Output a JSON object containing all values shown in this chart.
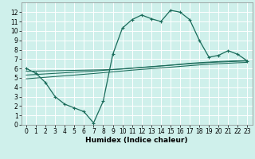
{
  "xlabel": "Humidex (Indice chaleur)",
  "bg_color": "#cff0eb",
  "line_color": "#1a6b5a",
  "grid_color": "#ffffff",
  "x_values": [
    0,
    1,
    2,
    3,
    4,
    5,
    6,
    7,
    8,
    9,
    10,
    11,
    12,
    13,
    14,
    15,
    16,
    17,
    18,
    19,
    20,
    21,
    22,
    23
  ],
  "y_main": [
    6.0,
    5.5,
    4.5,
    3.0,
    2.2,
    1.8,
    1.4,
    0.2,
    2.5,
    7.5,
    10.3,
    11.2,
    11.7,
    11.3,
    11.0,
    12.2,
    12.0,
    11.2,
    9.0,
    7.2,
    7.4,
    7.9,
    7.5,
    6.8
  ],
  "y_line1": [
    5.7,
    5.72,
    5.74,
    5.76,
    5.78,
    5.8,
    5.82,
    5.84,
    5.86,
    5.9,
    5.95,
    6.02,
    6.1,
    6.18,
    6.26,
    6.35,
    6.45,
    6.55,
    6.62,
    6.68,
    6.74,
    6.78,
    6.82,
    6.86
  ],
  "y_line2": [
    5.3,
    5.36,
    5.42,
    5.48,
    5.54,
    5.6,
    5.66,
    5.72,
    5.8,
    5.88,
    5.96,
    6.04,
    6.12,
    6.2,
    6.28,
    6.35,
    6.42,
    6.5,
    6.57,
    6.63,
    6.68,
    6.72,
    6.76,
    6.8
  ],
  "y_line3": [
    4.9,
    4.98,
    5.06,
    5.14,
    5.22,
    5.3,
    5.38,
    5.46,
    5.55,
    5.64,
    5.73,
    5.82,
    5.9,
    5.98,
    6.06,
    6.14,
    6.22,
    6.3,
    6.38,
    6.45,
    6.51,
    6.56,
    6.61,
    6.65
  ],
  "ylim": [
    0,
    13
  ],
  "xlim": [
    -0.5,
    23.5
  ],
  "yticks": [
    0,
    1,
    2,
    3,
    4,
    5,
    6,
    7,
    8,
    9,
    10,
    11,
    12
  ],
  "xticks": [
    0,
    1,
    2,
    3,
    4,
    5,
    6,
    7,
    8,
    9,
    10,
    11,
    12,
    13,
    14,
    15,
    16,
    17,
    18,
    19,
    20,
    21,
    22,
    23
  ],
  "xlabel_fontsize": 6.5,
  "tick_fontsize": 5.5
}
